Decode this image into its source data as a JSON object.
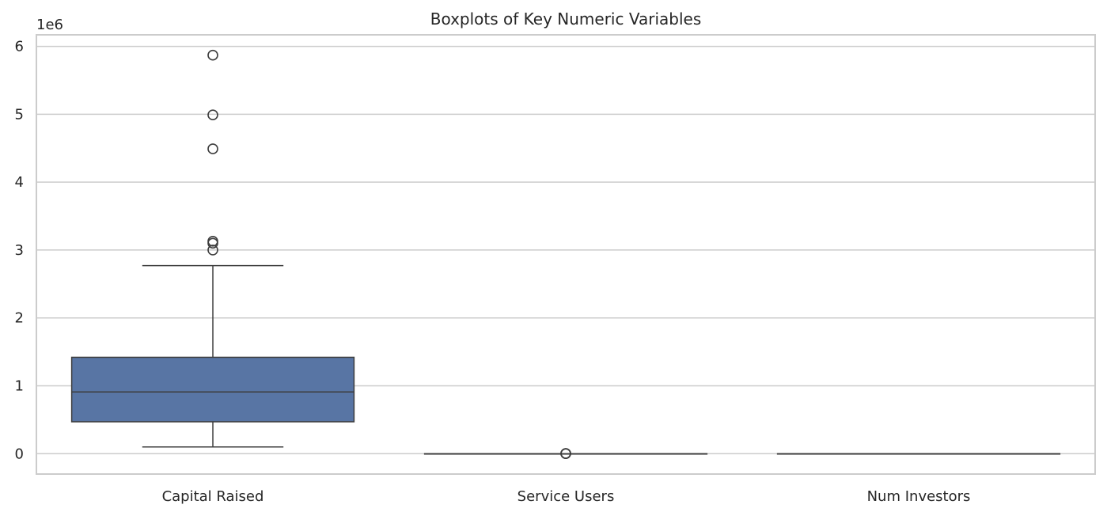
{
  "chart_data": {
    "type": "boxplot",
    "title": "Boxplots of Key Numeric Variables",
    "xlabel": "",
    "ylabel": "",
    "offset_label": "1e6",
    "ylim": [
      -300000,
      6170000
    ],
    "yticks": [
      0,
      1,
      2,
      3,
      4,
      5,
      6
    ],
    "ytick_scale": 1000000,
    "grid": true,
    "colors": {
      "box": "#5875a4",
      "line": "#3d3d3d",
      "grid": "#cccccc",
      "frame": "#cccccc"
    },
    "categories": [
      "Capital Raised",
      "Service Users",
      "Num Investors"
    ],
    "boxes": [
      {
        "name": "Capital Raised",
        "whisker_low": 100000,
        "q1": 470000,
        "median": 910000,
        "q3": 1420000,
        "whisker_high": 2770000,
        "outliers": [
          3000000,
          3100000,
          3130000,
          4490000,
          4990000,
          5870000
        ]
      },
      {
        "name": "Service Users",
        "whisker_low": 0,
        "q1": 0,
        "median": 0,
        "q3": 0,
        "whisker_high": 0,
        "outliers": [
          1000,
          2000,
          3000
        ]
      },
      {
        "name": "Num Investors",
        "whisker_low": 0,
        "q1": 0,
        "median": 0,
        "q3": 0,
        "whisker_high": 0,
        "outliers": []
      }
    ]
  }
}
